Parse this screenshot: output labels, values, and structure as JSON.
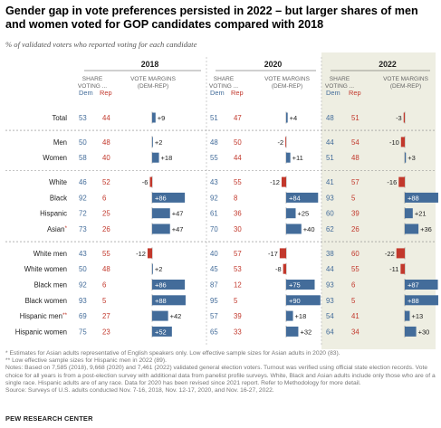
{
  "title": "Gender gap in vote preferences persisted in 2022 – but larger shares of men and women voted for GOP candidates compared with 2018",
  "subtitle": "% of validated voters who reported voting for each candidate",
  "notes": [
    "* Estimates for Asian adults representative of English speakers only. Low effective sample sizes for Asian adults in 2020 (83).",
    "** Low effective sample sizes for Hispanic men in 2022 (89).",
    "Notes: Based on 7,585 (2018), 9,668 (2020) and 7,461 (2022) validated general election voters. Turnout was verified using official state election records. Vote choice for all years is from a post-election survey with additional data from panelist profile surveys. White, Black and Asian adults include only those who are of a single race. Hispanic adults are of any race. Data for 2020 has been revised since 2021 report. Refer to Methodology for more detail.",
    "Source: Surveys of U.S. adults conducted Nov. 7-16, 2018, Nov. 12-17, 2020, and Nov. 16-27, 2022."
  ],
  "source_org": "PEW RESEARCH CENTER",
  "colors": {
    "dem": "#436c9a",
    "rep": "#c2382c",
    "highlight_bg": "#eeeee2",
    "divider": "#888888"
  },
  "chart_data": {
    "type": "table",
    "years": [
      "2018",
      "2020",
      "2022"
    ],
    "share_header": "SHARE VOTING ...",
    "margin_header": "VOTE MARGINS (DEM-REP)",
    "dem_label": "Dem",
    "rep_label": "Rep",
    "groups": [
      [
        "Total"
      ],
      [
        "Men",
        "Women"
      ],
      [
        "White",
        "Black",
        "Hispanic",
        "Asian"
      ],
      [
        "White men",
        "White women",
        "Black men",
        "Black women",
        "Hispanic men",
        "Hispanic women"
      ]
    ],
    "rows": [
      {
        "label": "Total",
        "mark": "",
        "data": [
          {
            "dem": 53,
            "rep": 44,
            "margin": "+9",
            "m": 9
          },
          {
            "dem": 51,
            "rep": 47,
            "margin": "+4",
            "m": 4
          },
          {
            "dem": 48,
            "rep": 51,
            "margin": "-3",
            "m": -3
          }
        ]
      },
      {
        "label": "Men",
        "mark": "",
        "data": [
          {
            "dem": 50,
            "rep": 48,
            "margin": "+2",
            "m": 2
          },
          {
            "dem": 48,
            "rep": 50,
            "margin": "-2",
            "m": -2
          },
          {
            "dem": 44,
            "rep": 54,
            "margin": "-10",
            "m": -10
          }
        ]
      },
      {
        "label": "Women",
        "mark": "",
        "data": [
          {
            "dem": 58,
            "rep": 40,
            "margin": "+18",
            "m": 18
          },
          {
            "dem": 55,
            "rep": 44,
            "margin": "+11",
            "m": 11
          },
          {
            "dem": 51,
            "rep": 48,
            "margin": "+3",
            "m": 3
          }
        ]
      },
      {
        "label": "White",
        "mark": "",
        "data": [
          {
            "dem": 46,
            "rep": 52,
            "margin": "-6",
            "m": -6
          },
          {
            "dem": 43,
            "rep": 55,
            "margin": "-12",
            "m": -12
          },
          {
            "dem": 41,
            "rep": 57,
            "margin": "-16",
            "m": -16
          }
        ]
      },
      {
        "label": "Black",
        "mark": "",
        "data": [
          {
            "dem": 92,
            "rep": 6,
            "margin": "+86",
            "m": 86
          },
          {
            "dem": 92,
            "rep": 8,
            "margin": "+84",
            "m": 84
          },
          {
            "dem": 93,
            "rep": 5,
            "margin": "+88",
            "m": 88
          }
        ]
      },
      {
        "label": "Hispanic",
        "mark": "",
        "data": [
          {
            "dem": 72,
            "rep": 25,
            "margin": "+47",
            "m": 47
          },
          {
            "dem": 61,
            "rep": 36,
            "margin": "+25",
            "m": 25
          },
          {
            "dem": 60,
            "rep": 39,
            "margin": "+21",
            "m": 21
          }
        ]
      },
      {
        "label": "Asian",
        "mark": "*",
        "data": [
          {
            "dem": 73,
            "rep": 26,
            "margin": "+47",
            "m": 47
          },
          {
            "dem": 70,
            "rep": 30,
            "margin": "+40",
            "m": 40
          },
          {
            "dem": 62,
            "rep": 26,
            "margin": "+36",
            "m": 36
          }
        ]
      },
      {
        "label": "White men",
        "mark": "",
        "data": [
          {
            "dem": 43,
            "rep": 55,
            "margin": "-12",
            "m": -12
          },
          {
            "dem": 40,
            "rep": 57,
            "margin": "-17",
            "m": -17
          },
          {
            "dem": 38,
            "rep": 60,
            "margin": "-22",
            "m": -22
          }
        ]
      },
      {
        "label": "White women",
        "mark": "",
        "data": [
          {
            "dem": 50,
            "rep": 48,
            "margin": "+2",
            "m": 2
          },
          {
            "dem": 45,
            "rep": 53,
            "margin": "-8",
            "m": -8
          },
          {
            "dem": 44,
            "rep": 55,
            "margin": "-11",
            "m": -11
          }
        ]
      },
      {
        "label": "Black men",
        "mark": "",
        "data": [
          {
            "dem": 92,
            "rep": 6,
            "margin": "+86",
            "m": 86
          },
          {
            "dem": 87,
            "rep": 12,
            "margin": "+75",
            "m": 75
          },
          {
            "dem": 93,
            "rep": 6,
            "margin": "+87",
            "m": 87
          }
        ]
      },
      {
        "label": "Black women",
        "mark": "",
        "data": [
          {
            "dem": 93,
            "rep": 5,
            "margin": "+88",
            "m": 88
          },
          {
            "dem": 95,
            "rep": 5,
            "margin": "+90",
            "m": 90
          },
          {
            "dem": 93,
            "rep": 5,
            "margin": "+88",
            "m": 88
          }
        ]
      },
      {
        "label": "Hispanic men",
        "mark": "**",
        "data": [
          {
            "dem": 69,
            "rep": 27,
            "margin": "+42",
            "m": 42
          },
          {
            "dem": 57,
            "rep": 39,
            "margin": "+18",
            "m": 18
          },
          {
            "dem": 54,
            "rep": 41,
            "margin": "+13",
            "m": 13
          }
        ]
      },
      {
        "label": "Hispanic women",
        "mark": "",
        "data": [
          {
            "dem": 75,
            "rep": 23,
            "margin": "+52",
            "m": 52
          },
          {
            "dem": 65,
            "rep": 33,
            "margin": "+32",
            "m": 32
          },
          {
            "dem": 64,
            "rep": 34,
            "margin": "+30",
            "m": 30
          }
        ]
      }
    ]
  }
}
